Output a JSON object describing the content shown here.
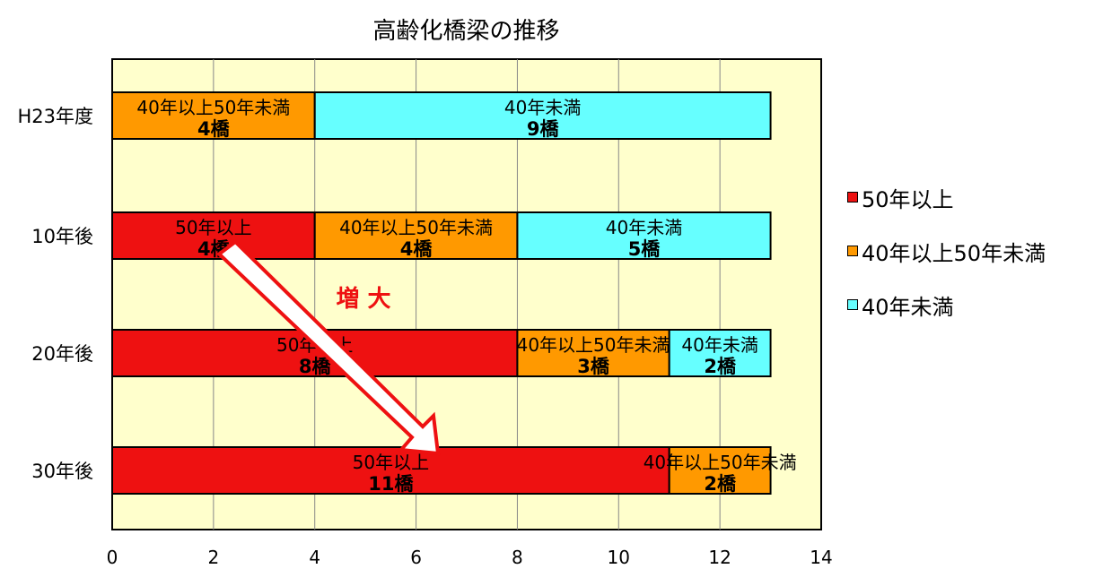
{
  "chart_data": {
    "type": "bar",
    "orientation": "horizontal",
    "stacked": true,
    "title": "高齢化橋梁の推移",
    "categories": [
      "H23年度",
      "10年後",
      "20年後",
      "30年後"
    ],
    "series": [
      {
        "name": "50年以上",
        "color": "#ee1111",
        "values": [
          0,
          4,
          8,
          11
        ],
        "labels": [
          "",
          "4橋",
          "8橋",
          "11橋"
        ]
      },
      {
        "name": "40年以上50年未満",
        "color": "#ff9900",
        "values": [
          4,
          4,
          3,
          2
        ],
        "labels": [
          "4橋",
          "4橋",
          "3橋",
          "2橋"
        ]
      },
      {
        "name": "40年未満",
        "color": "#66ffff",
        "values": [
          9,
          5,
          2,
          0
        ],
        "labels": [
          "9橋",
          "5橋",
          "2橋",
          ""
        ]
      }
    ],
    "xlim": [
      0,
      14
    ],
    "x_ticks": [
      "0",
      "2",
      "4",
      "6",
      "8",
      "10",
      "12",
      "14"
    ],
    "grid": true,
    "legend_position": "right",
    "plot_background": "#ffffcc",
    "annotation": {
      "text": "増 大",
      "color": "#ee1111"
    }
  }
}
